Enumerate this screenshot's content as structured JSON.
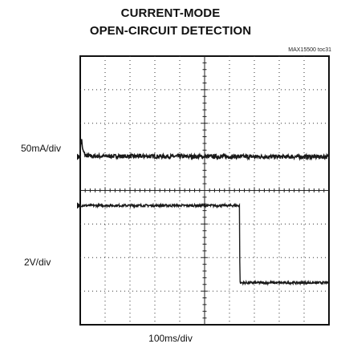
{
  "chart_data": {
    "type": "line",
    "title": "CURRENT-MODE",
    "subtitle": "OPEN-CIRCUIT DETECTION",
    "reference": "MAX15500 toc31",
    "xlabel": "100ms/div",
    "grid": true,
    "x_divisions": 10,
    "y_divisions": 8,
    "series": [
      {
        "name": "50mA/div",
        "x_div": [
          0,
          0.05,
          0.1,
          0.2,
          0.4,
          10
        ],
        "y_div": [
          5.25,
          5.55,
          5.2,
          5.05,
          5.02,
          5.0
        ]
      },
      {
        "name": "2V/div",
        "x_div": [
          0,
          6.4,
          6.42,
          10
        ],
        "y_div": [
          3.55,
          3.55,
          1.25,
          1.25
        ]
      }
    ]
  }
}
